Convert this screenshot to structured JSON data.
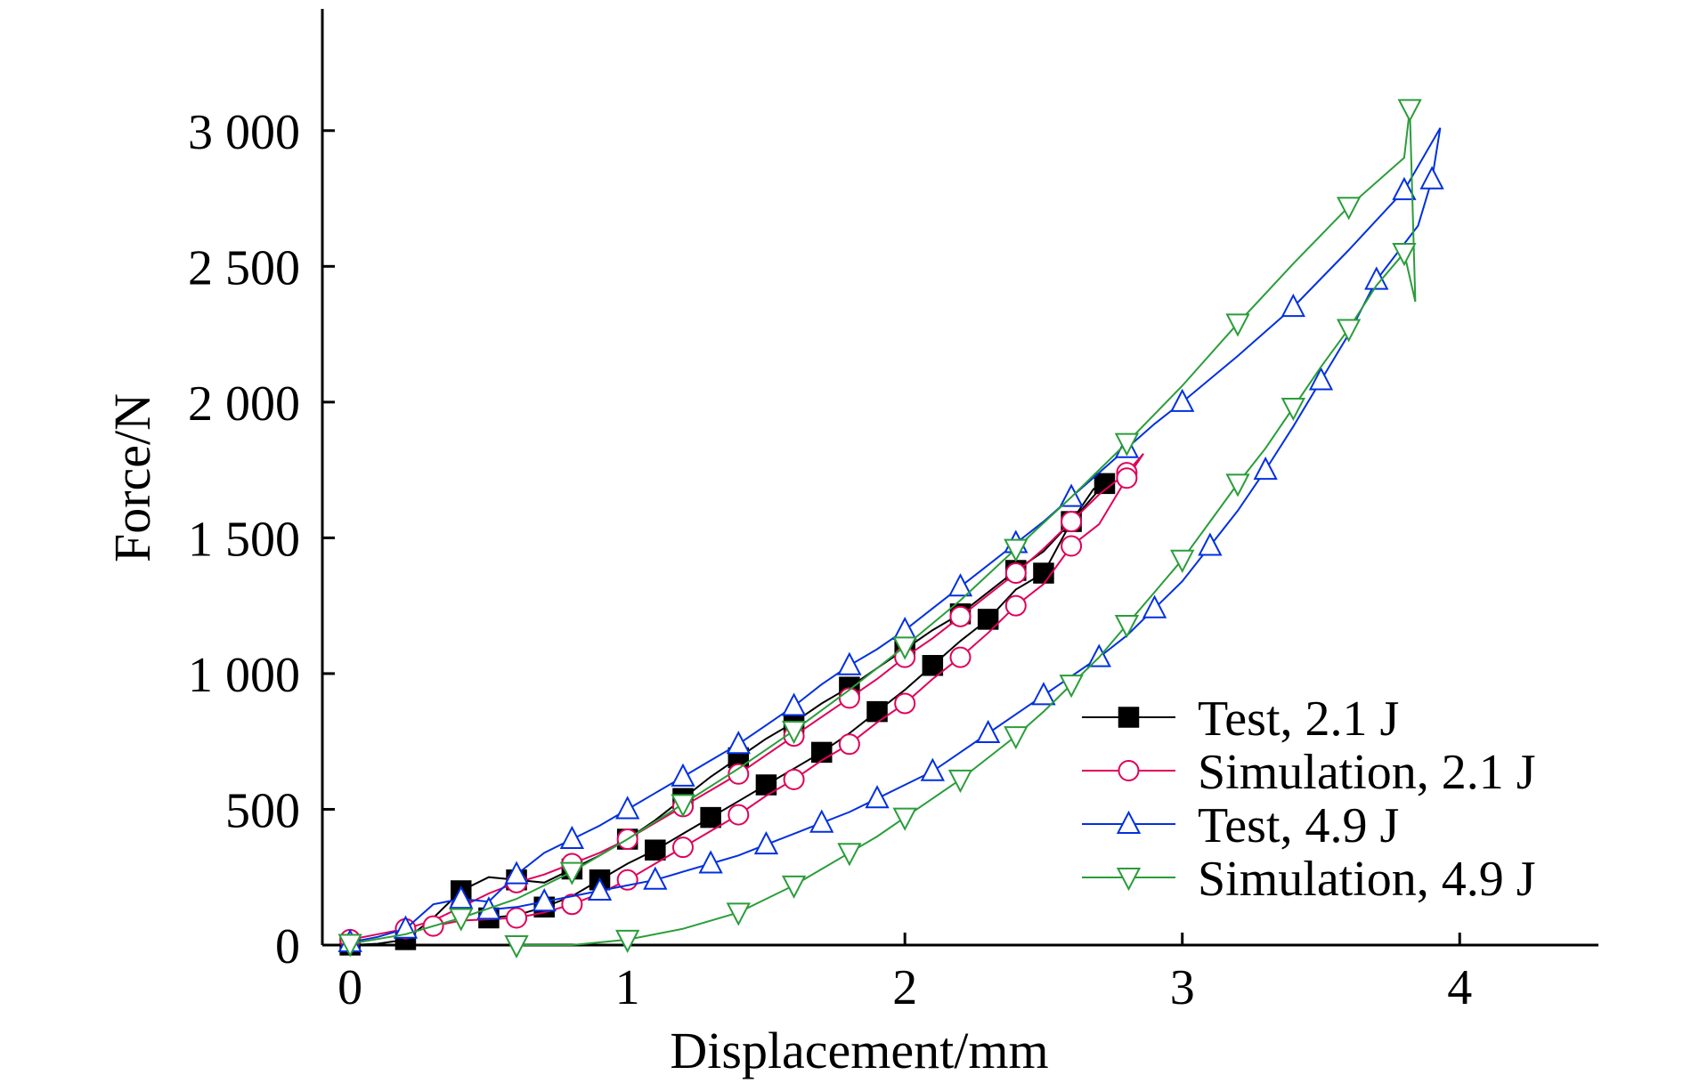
{
  "chart_data": {
    "type": "line",
    "title": "",
    "xlabel": "Displacement/mm",
    "ylabel": "Force/N",
    "xlim": [
      -0.1,
      4.5
    ],
    "ylim": [
      0,
      3350
    ],
    "x_ticks": [
      {
        "value": 0,
        "label": "0"
      },
      {
        "value": 1,
        "label": "1"
      },
      {
        "value": 2,
        "label": "2"
      },
      {
        "value": 3,
        "label": "3"
      },
      {
        "value": 4,
        "label": "4"
      }
    ],
    "y_ticks": [
      {
        "value": 0,
        "label": "0"
      },
      {
        "value": 500,
        "label": "500"
      },
      {
        "value": 1000,
        "label": "1 000"
      },
      {
        "value": 1500,
        "label": "1 500"
      },
      {
        "value": 2000,
        "label": "2 000"
      },
      {
        "value": 2500,
        "label": "2 500"
      },
      {
        "value": 3000,
        "label": "3 000"
      }
    ],
    "grid": false,
    "legend_position": "bottom-right",
    "series": [
      {
        "name": "Test, 2.1 J",
        "color": "#000000",
        "marker": "square-filled",
        "points": [
          [
            0.0,
            0
          ],
          [
            0.1,
            5
          ],
          [
            0.2,
            20
          ],
          [
            0.3,
            100
          ],
          [
            0.4,
            200
          ],
          [
            0.5,
            250
          ],
          [
            0.6,
            240
          ],
          [
            0.7,
            230
          ],
          [
            0.8,
            280
          ],
          [
            0.9,
            330
          ],
          [
            1.0,
            390
          ],
          [
            1.1,
            460
          ],
          [
            1.2,
            540
          ],
          [
            1.3,
            620
          ],
          [
            1.4,
            690
          ],
          [
            1.5,
            760
          ],
          [
            1.6,
            820
          ],
          [
            1.7,
            890
          ],
          [
            1.8,
            950
          ],
          [
            1.9,
            1020
          ],
          [
            2.0,
            1090
          ],
          [
            2.1,
            1160
          ],
          [
            2.2,
            1220
          ],
          [
            2.3,
            1300
          ],
          [
            2.4,
            1380
          ],
          [
            2.5,
            1450
          ],
          [
            2.6,
            1560
          ],
          [
            2.68,
            1680
          ],
          [
            2.72,
            1700
          ],
          [
            2.6,
            1560
          ],
          [
            2.5,
            1370
          ],
          [
            2.4,
            1310
          ],
          [
            2.3,
            1200
          ],
          [
            2.2,
            1120
          ],
          [
            2.1,
            1030
          ],
          [
            2.0,
            940
          ],
          [
            1.9,
            860
          ],
          [
            1.8,
            780
          ],
          [
            1.7,
            710
          ],
          [
            1.6,
            650
          ],
          [
            1.5,
            590
          ],
          [
            1.4,
            530
          ],
          [
            1.3,
            470
          ],
          [
            1.2,
            410
          ],
          [
            1.1,
            350
          ],
          [
            1.0,
            300
          ],
          [
            0.9,
            240
          ],
          [
            0.8,
            180
          ],
          [
            0.7,
            140
          ],
          [
            0.6,
            110
          ],
          [
            0.5,
            100
          ]
        ]
      },
      {
        "name": "Simulation, 2.1 J",
        "color": "#e0005a",
        "marker": "circle-open",
        "points": [
          [
            0.0,
            20
          ],
          [
            0.1,
            40
          ],
          [
            0.2,
            60
          ],
          [
            0.3,
            90
          ],
          [
            0.4,
            140
          ],
          [
            0.5,
            190
          ],
          [
            0.6,
            230
          ],
          [
            0.7,
            260
          ],
          [
            0.8,
            300
          ],
          [
            0.9,
            340
          ],
          [
            1.0,
            390
          ],
          [
            1.1,
            450
          ],
          [
            1.2,
            510
          ],
          [
            1.3,
            570
          ],
          [
            1.4,
            630
          ],
          [
            1.5,
            700
          ],
          [
            1.6,
            770
          ],
          [
            1.7,
            840
          ],
          [
            1.8,
            910
          ],
          [
            1.9,
            980
          ],
          [
            2.0,
            1060
          ],
          [
            2.1,
            1130
          ],
          [
            2.2,
            1210
          ],
          [
            2.3,
            1290
          ],
          [
            2.4,
            1370
          ],
          [
            2.5,
            1460
          ],
          [
            2.6,
            1560
          ],
          [
            2.7,
            1660
          ],
          [
            2.8,
            1740
          ],
          [
            2.86,
            1810
          ],
          [
            2.8,
            1720
          ],
          [
            2.7,
            1550
          ],
          [
            2.6,
            1470
          ],
          [
            2.5,
            1330
          ],
          [
            2.4,
            1250
          ],
          [
            2.3,
            1150
          ],
          [
            2.2,
            1060
          ],
          [
            2.1,
            980
          ],
          [
            2.0,
            890
          ],
          [
            1.9,
            820
          ],
          [
            1.8,
            740
          ],
          [
            1.7,
            680
          ],
          [
            1.6,
            610
          ],
          [
            1.5,
            550
          ],
          [
            1.4,
            480
          ],
          [
            1.3,
            420
          ],
          [
            1.2,
            360
          ],
          [
            1.1,
            300
          ],
          [
            1.0,
            240
          ],
          [
            0.9,
            190
          ],
          [
            0.8,
            150
          ],
          [
            0.7,
            120
          ],
          [
            0.6,
            100
          ],
          [
            0.4,
            90
          ],
          [
            0.3,
            70
          ]
        ]
      },
      {
        "name": "Test, 4.9 J",
        "color": "#0030e0",
        "marker": "triangle-up-open",
        "points": [
          [
            0.0,
            10
          ],
          [
            0.1,
            30
          ],
          [
            0.2,
            60
          ],
          [
            0.3,
            150
          ],
          [
            0.4,
            170
          ],
          [
            0.5,
            160
          ],
          [
            0.6,
            260
          ],
          [
            0.7,
            340
          ],
          [
            0.8,
            390
          ],
          [
            0.9,
            440
          ],
          [
            1.0,
            500
          ],
          [
            1.1,
            560
          ],
          [
            1.2,
            620
          ],
          [
            1.3,
            680
          ],
          [
            1.4,
            740
          ],
          [
            1.5,
            810
          ],
          [
            1.6,
            880
          ],
          [
            1.7,
            960
          ],
          [
            1.8,
            1030
          ],
          [
            1.9,
            1090
          ],
          [
            2.0,
            1160
          ],
          [
            2.1,
            1240
          ],
          [
            2.2,
            1320
          ],
          [
            2.3,
            1400
          ],
          [
            2.4,
            1480
          ],
          [
            2.5,
            1560
          ],
          [
            2.6,
            1650
          ],
          [
            2.7,
            1740
          ],
          [
            2.8,
            1830
          ],
          [
            2.9,
            1920
          ],
          [
            3.0,
            2000
          ],
          [
            3.2,
            2170
          ],
          [
            3.4,
            2350
          ],
          [
            3.6,
            2560
          ],
          [
            3.8,
            2780
          ],
          [
            3.93,
            3010
          ],
          [
            3.9,
            2820
          ],
          [
            3.85,
            2650
          ],
          [
            3.7,
            2450
          ],
          [
            3.6,
            2250
          ],
          [
            3.5,
            2080
          ],
          [
            3.4,
            1910
          ],
          [
            3.3,
            1750
          ],
          [
            3.2,
            1600
          ],
          [
            3.1,
            1470
          ],
          [
            3.0,
            1340
          ],
          [
            2.9,
            1240
          ],
          [
            2.8,
            1140
          ],
          [
            2.7,
            1060
          ],
          [
            2.6,
            990
          ],
          [
            2.5,
            920
          ],
          [
            2.4,
            850
          ],
          [
            2.3,
            780
          ],
          [
            2.2,
            710
          ],
          [
            2.1,
            640
          ],
          [
            2.0,
            590
          ],
          [
            1.9,
            540
          ],
          [
            1.8,
            490
          ],
          [
            1.7,
            450
          ],
          [
            1.6,
            410
          ],
          [
            1.5,
            370
          ],
          [
            1.4,
            330
          ],
          [
            1.3,
            300
          ],
          [
            1.2,
            270
          ],
          [
            1.1,
            240
          ],
          [
            1.0,
            220
          ],
          [
            0.9,
            200
          ],
          [
            0.8,
            180
          ],
          [
            0.7,
            160
          ],
          [
            0.6,
            140
          ],
          [
            0.5,
            130
          ]
        ]
      },
      {
        "name": "Simulation, 4.9 J",
        "color": "#2a9d3a",
        "marker": "triangle-down-open",
        "points": [
          [
            0.0,
            5
          ],
          [
            0.2,
            40
          ],
          [
            0.4,
            100
          ],
          [
            0.6,
            170
          ],
          [
            0.8,
            270
          ],
          [
            1.0,
            390
          ],
          [
            1.2,
            520
          ],
          [
            1.4,
            650
          ],
          [
            1.6,
            790
          ],
          [
            1.8,
            940
          ],
          [
            2.0,
            1100
          ],
          [
            2.2,
            1270
          ],
          [
            2.4,
            1460
          ],
          [
            2.6,
            1650
          ],
          [
            2.8,
            1850
          ],
          [
            3.0,
            2060
          ],
          [
            3.2,
            2290
          ],
          [
            3.4,
            2510
          ],
          [
            3.6,
            2720
          ],
          [
            3.8,
            2900
          ],
          [
            3.82,
            3080
          ],
          [
            3.84,
            2370
          ],
          [
            3.8,
            2550
          ],
          [
            3.7,
            2430
          ],
          [
            3.6,
            2270
          ],
          [
            3.5,
            2130
          ],
          [
            3.4,
            1980
          ],
          [
            3.3,
            1830
          ],
          [
            3.2,
            1700
          ],
          [
            3.1,
            1560
          ],
          [
            3.0,
            1420
          ],
          [
            2.9,
            1300
          ],
          [
            2.8,
            1180
          ],
          [
            2.7,
            1060
          ],
          [
            2.6,
            960
          ],
          [
            2.5,
            860
          ],
          [
            2.4,
            770
          ],
          [
            2.3,
            690
          ],
          [
            2.2,
            610
          ],
          [
            2.1,
            540
          ],
          [
            2.0,
            470
          ],
          [
            1.9,
            400
          ],
          [
            1.8,
            340
          ],
          [
            1.7,
            280
          ],
          [
            1.6,
            220
          ],
          [
            1.5,
            170
          ],
          [
            1.4,
            120
          ],
          [
            1.2,
            60
          ],
          [
            1.0,
            20
          ],
          [
            0.8,
            0
          ],
          [
            0.6,
            0
          ]
        ]
      }
    ]
  }
}
